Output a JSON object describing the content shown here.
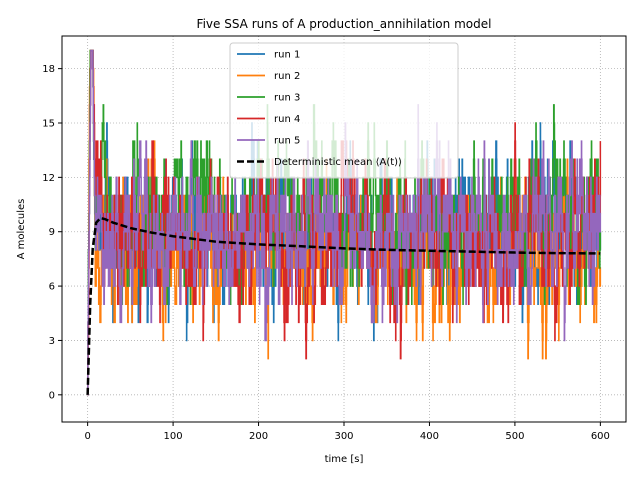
{
  "chart_data": {
    "type": "line",
    "title": "Five SSA runs of A production_annihilation model",
    "xlabel": "time [s]",
    "ylabel": "A molecules",
    "xlim": [
      -30,
      630
    ],
    "ylim": [
      -1.5,
      19.8
    ],
    "xticks": [
      0,
      100,
      200,
      300,
      400,
      500,
      600
    ],
    "yticks": [
      0,
      3,
      6,
      9,
      12,
      15,
      18
    ],
    "grid": true,
    "legend_position": "top-center",
    "series": [
      {
        "name": "run 1",
        "color": "#1f77b4",
        "style": "step",
        "seed": 11,
        "x": [
          0,
          600
        ],
        "y": [
          0,
          8
        ]
      },
      {
        "name": "run 2",
        "color": "#ff7f0e",
        "style": "step",
        "seed": 23,
        "x": [
          0,
          600
        ],
        "y": [
          0,
          7
        ]
      },
      {
        "name": "run 3",
        "color": "#2ca02c",
        "style": "step",
        "seed": 37,
        "x": [
          0,
          600
        ],
        "y": [
          0,
          9
        ]
      },
      {
        "name": "run 4",
        "color": "#d62728",
        "style": "step",
        "seed": 41,
        "x": [
          0,
          600
        ],
        "y": [
          0,
          8
        ]
      },
      {
        "name": "run 5",
        "color": "#9467bd",
        "style": "step",
        "seed": 53,
        "x": [
          0,
          600
        ],
        "y": [
          0,
          8
        ]
      },
      {
        "name": "Deterministic mean ⟨A(t)⟩",
        "color": "#000000",
        "style": "dashed",
        "x": [
          0,
          3,
          6,
          10,
          15,
          20,
          30,
          50,
          75,
          100,
          150,
          200,
          250,
          300,
          350,
          400,
          450,
          500,
          550,
          600
        ],
        "y": [
          0,
          5.0,
          8.1,
          9.5,
          9.75,
          9.7,
          9.5,
          9.2,
          8.95,
          8.75,
          8.45,
          8.3,
          8.2,
          8.08,
          8.0,
          7.95,
          7.9,
          7.85,
          7.82,
          7.8
        ]
      }
    ]
  }
}
